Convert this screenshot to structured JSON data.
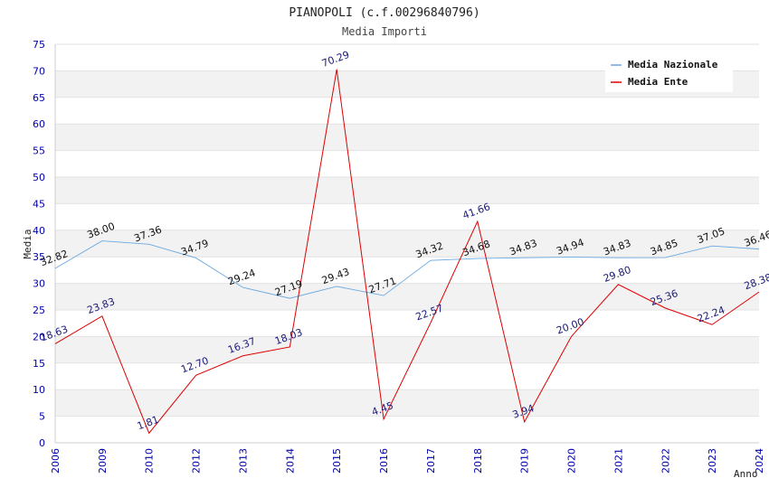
{
  "chart_data": {
    "type": "line",
    "title": "PIANOPOLI (c.f.00296840796)",
    "subtitle": "Media Importi",
    "xlabel": "Anno",
    "ylabel": "Media",
    "ylim": [
      0,
      75
    ],
    "yticks": [
      0,
      5,
      10,
      15,
      20,
      25,
      30,
      35,
      40,
      45,
      50,
      55,
      60,
      65,
      70,
      75
    ],
    "categories": [
      "2006",
      "2009",
      "2010",
      "2012",
      "2013",
      "2014",
      "2015",
      "2016",
      "2017",
      "2018",
      "2019",
      "2020",
      "2021",
      "2022",
      "2023",
      "2024"
    ],
    "legend_position": "top-right",
    "series": [
      {
        "name": "Media Nazionale",
        "color": "#6aa8e0",
        "values": [
          32.82,
          38.0,
          37.36,
          34.79,
          29.24,
          27.19,
          29.43,
          27.71,
          34.32,
          34.68,
          34.83,
          34.94,
          34.83,
          34.85,
          37.05,
          36.46
        ],
        "labels": [
          "32.82",
          "38.00",
          "37.36",
          "34.79",
          "29.24",
          "27.19",
          "29.43",
          "27.71",
          "34.32",
          "34.68",
          "34.83",
          "34.94",
          "34.83",
          "34.85",
          "37.05",
          "36.46"
        ]
      },
      {
        "name": "Media Ente",
        "color": "#dd0000",
        "values": [
          18.63,
          23.83,
          1.81,
          12.7,
          16.37,
          18.03,
          70.29,
          4.45,
          22.57,
          41.66,
          3.94,
          20.0,
          29.8,
          25.36,
          22.24,
          28.38
        ],
        "labels": [
          "18.63",
          "23.83",
          "1.81",
          "12.70",
          "16.37",
          "18.03",
          "70.29",
          "4.45",
          "22.57",
          "41.66",
          "3.94",
          "20.00",
          "29.80",
          "25.36",
          "22.24",
          "28.38"
        ]
      }
    ]
  }
}
